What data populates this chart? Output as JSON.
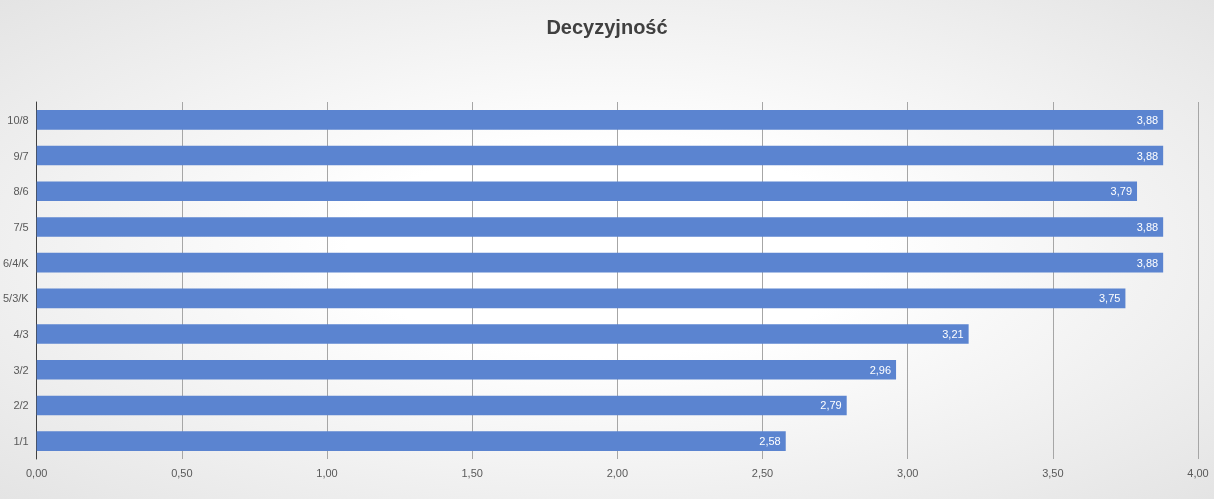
{
  "chart_data": {
    "type": "bar",
    "orientation": "horizontal",
    "title": "Decyzyjność",
    "categories": [
      "10/8",
      "9/7",
      "8/6",
      "7/5",
      "6/4/K",
      "5/3/K",
      "4/3",
      "3/2",
      "2/2",
      "1/1"
    ],
    "values": [
      3.88,
      3.88,
      3.79,
      3.88,
      3.88,
      3.75,
      3.21,
      2.96,
      2.79,
      2.58
    ],
    "value_labels": [
      "3,88",
      "3,88",
      "3,79",
      "3,88",
      "3,88",
      "3,75",
      "3,21",
      "2,96",
      "2,79",
      "2,58"
    ],
    "color": "#5b84d0",
    "xlim": [
      0,
      4
    ],
    "xticks": [
      {
        "value": 0,
        "label": "0,00"
      },
      {
        "value": 0.5,
        "label": "0,50"
      },
      {
        "value": 1,
        "label": "1,00"
      },
      {
        "value": 1.5,
        "label": "1,50"
      },
      {
        "value": 2,
        "label": "2,00"
      },
      {
        "value": 2.5,
        "label": "2,50"
      },
      {
        "value": 3,
        "label": "3,00"
      },
      {
        "value": 3.5,
        "label": "3,50"
      },
      {
        "value": 4,
        "label": "4,00"
      }
    ],
    "grid": "x"
  }
}
